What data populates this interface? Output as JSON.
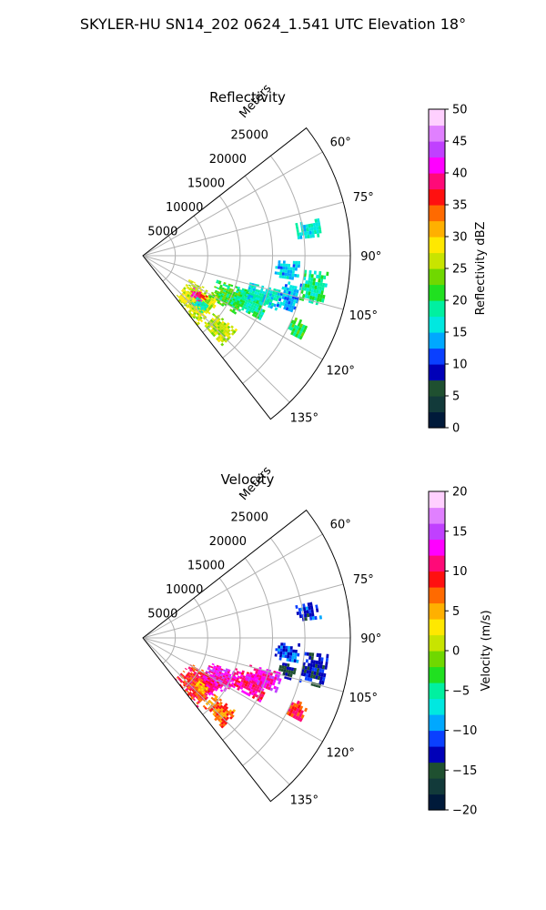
{
  "figure": {
    "title": "SKYLER-HU  SN14_202  0624_1.541 UTC Elevation 18°"
  },
  "chart_data": [
    {
      "type": "heatmap",
      "projection": "polar sector",
      "title": "Reflectivity",
      "radial_label": "Meters",
      "radial_ticks": [
        5000,
        10000,
        15000,
        20000,
        25000
      ],
      "radial_tick_labels": [
        "5000",
        "10000",
        "15000",
        "20000",
        "25000"
      ],
      "rlim": [
        0,
        32000
      ],
      "azimuth_ticks_deg": [
        60,
        75,
        90,
        105,
        120,
        135
      ],
      "azimuth_tick_labels": [
        "60°",
        "75°",
        "90°",
        "105°",
        "120°",
        "135°"
      ],
      "azimuth_range_deg": [
        52,
        142
      ],
      "grid": true,
      "colorbar": {
        "label": "Reflectivity dBZ",
        "min": 0,
        "max": 50,
        "ticks": [
          0,
          5,
          10,
          15,
          20,
          25,
          30,
          35,
          40,
          45,
          50
        ],
        "tick_labels": [
          "0",
          "5",
          "10",
          "15",
          "20",
          "25",
          "30",
          "35",
          "40",
          "45",
          "50"
        ],
        "colormap": "HomeyerRainbow",
        "colors": [
          "#001a3a",
          "#123a3a",
          "#1f5030",
          "#0000b8",
          "#0a40ff",
          "#00a8ff",
          "#00e8e0",
          "#00f0a0",
          "#20e020",
          "#70d800",
          "#c8e400",
          "#ffe800",
          "#ffb000",
          "#ff6a00",
          "#ff1010",
          "#ff0a78",
          "#ff00ff",
          "#c040ff",
          "#e080ff",
          "#ffd0ff"
        ]
      },
      "echoes": [
        {
          "az": [
            117,
            141
          ],
          "r": [
            8000,
            13500
          ],
          "value": 27
        },
        {
          "az": [
            122,
            130
          ],
          "r": [
            9200,
            11500
          ],
          "value": 38
        },
        {
          "az": [
            128,
            138
          ],
          "r": [
            14000,
            18500
          ],
          "value": 26
        },
        {
          "az": [
            108,
            122
          ],
          "r": [
            12000,
            17000
          ],
          "value": 22
        },
        {
          "az": [
            108,
            118
          ],
          "r": [
            15000,
            20500
          ],
          "value": 19
        },
        {
          "az": [
            104,
            112
          ],
          "r": [
            17000,
            22000
          ],
          "value": 17
        },
        {
          "az": [
            92,
            99
          ],
          "r": [
            20500,
            24000
          ],
          "value": 15
        },
        {
          "az": [
            78,
            84
          ],
          "r": [
            24000,
            27500
          ],
          "value": 17
        },
        {
          "az": [
            95,
            105
          ],
          "r": [
            25000,
            28500
          ],
          "value": 19
        },
        {
          "az": [
            112,
            118
          ],
          "r": [
            25000,
            27500
          ],
          "value": 21
        },
        {
          "az": [
            127,
            133
          ],
          "r": [
            10500,
            12500
          ],
          "value": 17
        },
        {
          "az": [
            100,
            110
          ],
          "r": [
            22000,
            25000
          ],
          "value": 14
        }
      ]
    },
    {
      "type": "heatmap",
      "projection": "polar sector",
      "title": "Velocity",
      "radial_label": "Meters",
      "radial_ticks": [
        5000,
        10000,
        15000,
        20000,
        25000
      ],
      "radial_tick_labels": [
        "5000",
        "10000",
        "15000",
        "20000",
        "25000"
      ],
      "rlim": [
        0,
        32000
      ],
      "azimuth_ticks_deg": [
        60,
        75,
        90,
        105,
        120,
        135
      ],
      "azimuth_tick_labels": [
        "60°",
        "75°",
        "90°",
        "105°",
        "120°",
        "135°"
      ],
      "azimuth_range_deg": [
        52,
        142
      ],
      "grid": true,
      "colorbar": {
        "label": "Velocity (m/s)",
        "min": -20,
        "max": 20,
        "ticks": [
          -20,
          -15,
          -10,
          -5,
          0,
          5,
          10,
          15,
          20
        ],
        "tick_labels": [
          "−20",
          "−15",
          "−10",
          "−5",
          "0",
          "5",
          "10",
          "15",
          "20"
        ],
        "colormap": "HomeyerRainbow",
        "colors": [
          "#001a3a",
          "#123a3a",
          "#1f5030",
          "#0000b8",
          "#0a40ff",
          "#00a8ff",
          "#00e8e0",
          "#00f0a0",
          "#20e020",
          "#70d800",
          "#c8e400",
          "#ffe800",
          "#ffb000",
          "#ff6a00",
          "#ff1010",
          "#ff0a78",
          "#ff00ff",
          "#c040ff",
          "#e080ff",
          "#ffd0ff"
        ]
      },
      "echoes": [
        {
          "az": [
            118,
            141
          ],
          "r": [
            8000,
            13500
          ],
          "value": 9
        },
        {
          "az": [
            110,
            124
          ],
          "r": [
            11000,
            15500
          ],
          "value": 13
        },
        {
          "az": [
            120,
            130
          ],
          "r": [
            11000,
            14000
          ],
          "value": 11
        },
        {
          "az": [
            128,
            138
          ],
          "r": [
            14000,
            18500
          ],
          "value": 7
        },
        {
          "az": [
            108,
            118
          ],
          "r": [
            15000,
            20500
          ],
          "value": 11
        },
        {
          "az": [
            104,
            112
          ],
          "r": [
            17000,
            22000
          ],
          "value": 13
        },
        {
          "az": [
            92,
            99
          ],
          "r": [
            20500,
            24000
          ],
          "value": -11
        },
        {
          "az": [
            78,
            84
          ],
          "r": [
            24000,
            27500
          ],
          "value": -12
        },
        {
          "az": [
            95,
            105
          ],
          "r": [
            25000,
            28500
          ],
          "value": -13
        },
        {
          "az": [
            112,
            118
          ],
          "r": [
            25000,
            27500
          ],
          "value": 9
        },
        {
          "az": [
            127,
            133
          ],
          "r": [
            10500,
            12500
          ],
          "value": 4
        },
        {
          "az": [
            100,
            106
          ],
          "r": [
            21500,
            24000
          ],
          "value": -15
        }
      ]
    }
  ]
}
